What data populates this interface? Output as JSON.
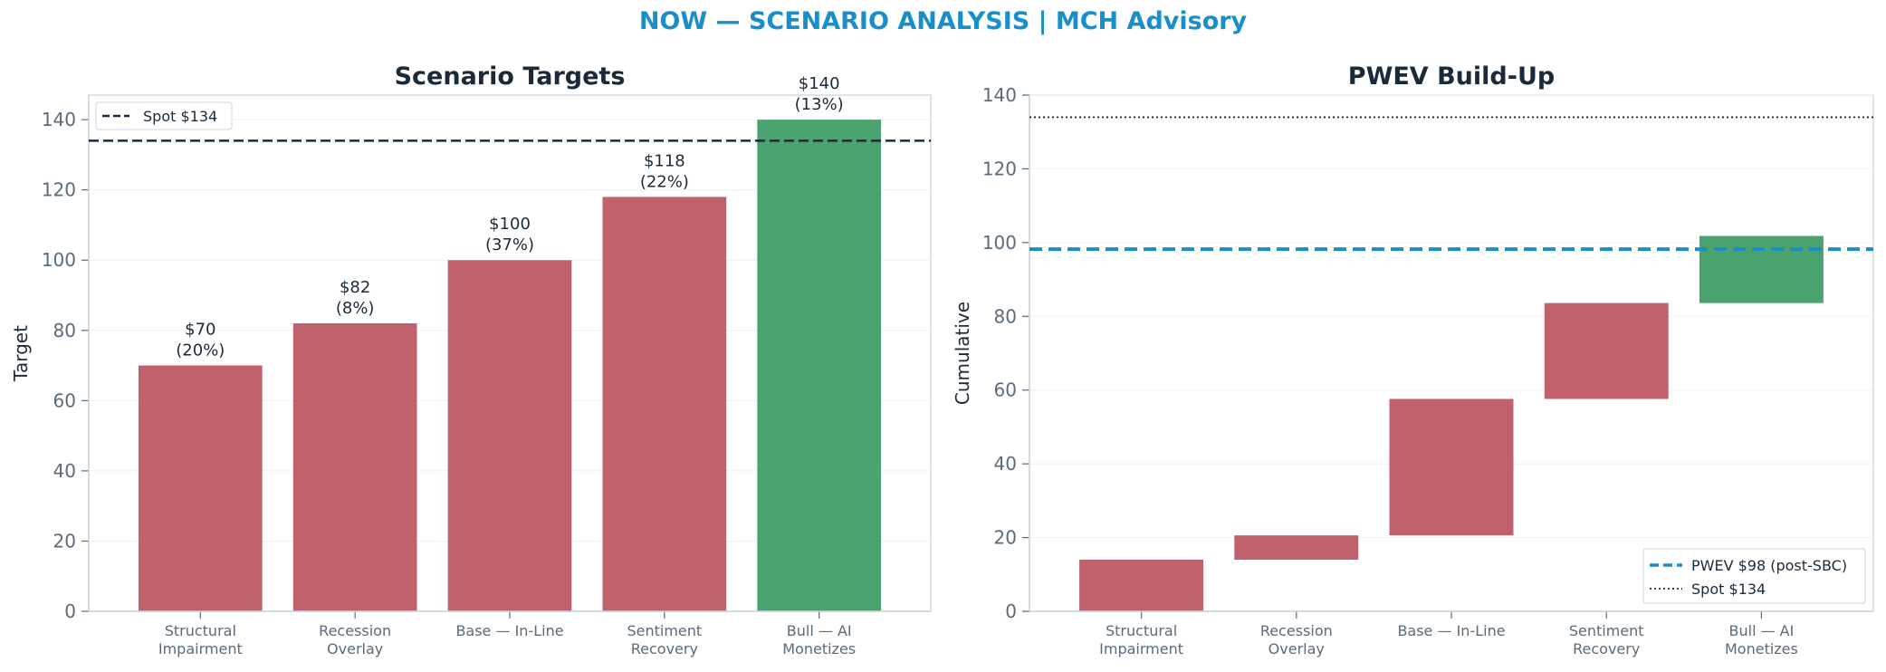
{
  "suptitle": "NOW — SCENARIO ANALYSIS | MCH Advisory",
  "colors": {
    "bear": "#c0616c",
    "bull": "#4aa26e",
    "pwev": "#1a8ec9",
    "spot": "#1b2a3a",
    "title": "#1a8ec9"
  },
  "chart_data": [
    {
      "type": "bar",
      "title": "Scenario Targets",
      "xlabel": "",
      "ylabel": "Target",
      "categories": [
        [
          "Structural",
          "Impairment"
        ],
        [
          "Recession",
          "Overlay"
        ],
        [
          "Base — In-Line"
        ],
        [
          "Sentiment",
          "Recovery"
        ],
        [
          "Bull — AI",
          "Monetizes"
        ]
      ],
      "values": [
        70,
        82,
        100,
        118,
        140
      ],
      "probabilities": [
        "20%",
        "8%",
        "37%",
        "22%",
        "13%"
      ],
      "data_labels": [
        [
          "$70",
          "(20%)"
        ],
        [
          "$82",
          "(8%)"
        ],
        [
          "$100",
          "(37%)"
        ],
        [
          "$118",
          "(22%)"
        ],
        [
          "$140",
          "(13%)"
        ]
      ],
      "colors": [
        "bear",
        "bear",
        "bear",
        "bear",
        "bull"
      ],
      "ylim": [
        0,
        147
      ],
      "yticks": [
        "0",
        "20",
        "40",
        "60",
        "80",
        "100",
        "120",
        "140"
      ],
      "grid": true,
      "reference_lines": [
        {
          "label": "Spot $134",
          "value": 134,
          "style": "dashed"
        }
      ],
      "legend_placement": "top-left"
    },
    {
      "type": "bar",
      "subtype": "waterfall",
      "title": "PWEV Build-Up",
      "xlabel": "",
      "ylabel": "Cumulative",
      "categories": [
        [
          "Structural",
          "Impairment"
        ],
        [
          "Recession",
          "Overlay"
        ],
        [
          "Base — In-Line"
        ],
        [
          "Sentiment",
          "Recovery"
        ],
        [
          "Bull — AI",
          "Monetizes"
        ]
      ],
      "series": [
        {
          "values": [
            {
              "start": 0,
              "end": 14
            },
            {
              "start": 14,
              "end": 20.6
            },
            {
              "start": 20.6,
              "end": 57.6
            },
            {
              "start": 57.6,
              "end": 83.6
            },
            {
              "start": 83.6,
              "end": 101.8
            }
          ]
        }
      ],
      "colors": [
        "bear",
        "bear",
        "bear",
        "bear",
        "bull"
      ],
      "ylim": [
        0,
        140
      ],
      "yticks": [
        "0",
        "20",
        "40",
        "60",
        "80",
        "100",
        "120",
        "140"
      ],
      "grid": true,
      "reference_lines": [
        {
          "label": "PWEV $98 (post-SBC)",
          "value": 98.2,
          "style": "dashed"
        },
        {
          "label": "Spot $134",
          "value": 134,
          "style": "dotted"
        }
      ],
      "legend_placement": "bottom-right"
    }
  ]
}
